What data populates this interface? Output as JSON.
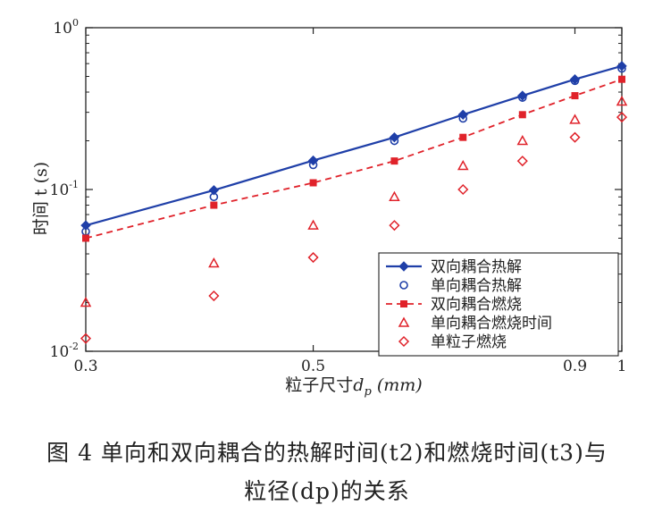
{
  "chart_data": {
    "type": "scatter",
    "xscale": "log",
    "yscale": "log",
    "xlim": [
      0.3,
      1.0
    ],
    "ylim": [
      0.01,
      1.0
    ],
    "xticks": [
      {
        "value": 0.3,
        "label": "0.3"
      },
      {
        "value": 0.5,
        "label": "0.5"
      },
      {
        "value": 0.9,
        "label": "0.9"
      },
      {
        "value": 1.0,
        "label": "1"
      }
    ],
    "yticks": [
      {
        "value": 0.01,
        "base": "10",
        "exp": "-2"
      },
      {
        "value": 0.1,
        "base": "10",
        "exp": "-1"
      },
      {
        "value": 1.0,
        "base": "10",
        "exp": "0"
      }
    ],
    "xlabel": {
      "prefix": "粒子尺寸",
      "var": "d",
      "sub": "p",
      "unit": " (mm)"
    },
    "ylabel": "时间 t (s)",
    "legend_position": "bottom-right",
    "series": [
      {
        "name": "双向耦合热解",
        "style": "line-diamond",
        "color": "#1f3fa8",
        "x": [
          0.3,
          0.4,
          0.5,
          0.6,
          0.7,
          0.8,
          0.9,
          1.0
        ],
        "y": [
          0.06,
          0.099,
          0.151,
          0.21,
          0.29,
          0.38,
          0.48,
          0.58
        ]
      },
      {
        "name": "单向耦合热解",
        "style": "circle",
        "color": "#1f3fa8",
        "x": [
          0.3,
          0.4,
          0.5,
          0.6,
          0.7,
          0.8,
          0.9,
          1.0
        ],
        "y": [
          0.055,
          0.09,
          0.142,
          0.2,
          0.275,
          0.37,
          0.47,
          0.56
        ]
      },
      {
        "name": "双向耦合燃烧",
        "style": "dashed-square",
        "color": "#e0222a",
        "x": [
          0.3,
          0.4,
          0.5,
          0.6,
          0.7,
          0.8,
          0.9,
          1.0
        ],
        "y": [
          0.05,
          0.08,
          0.11,
          0.15,
          0.21,
          0.29,
          0.38,
          0.48
        ]
      },
      {
        "name": "单向耦合燃烧时间",
        "style": "triangle",
        "color": "#e0222a",
        "x": [
          0.3,
          0.4,
          0.5,
          0.6,
          0.7,
          0.8,
          0.9,
          1.0
        ],
        "y": [
          0.02,
          0.035,
          0.06,
          0.09,
          0.14,
          0.2,
          0.27,
          0.35
        ]
      },
      {
        "name": "单粒子燃烧",
        "style": "diamond",
        "color": "#e0222a",
        "x": [
          0.3,
          0.4,
          0.5,
          0.6,
          0.7,
          0.8,
          0.9,
          1.0
        ],
        "y": [
          0.012,
          0.022,
          0.038,
          0.06,
          0.1,
          0.15,
          0.21,
          0.28
        ]
      }
    ]
  },
  "caption": {
    "line1": "图 4 单向和双向耦合的热解时间(t2)和燃烧时间(t3)与",
    "line2": "粒径(dp)的关系"
  }
}
